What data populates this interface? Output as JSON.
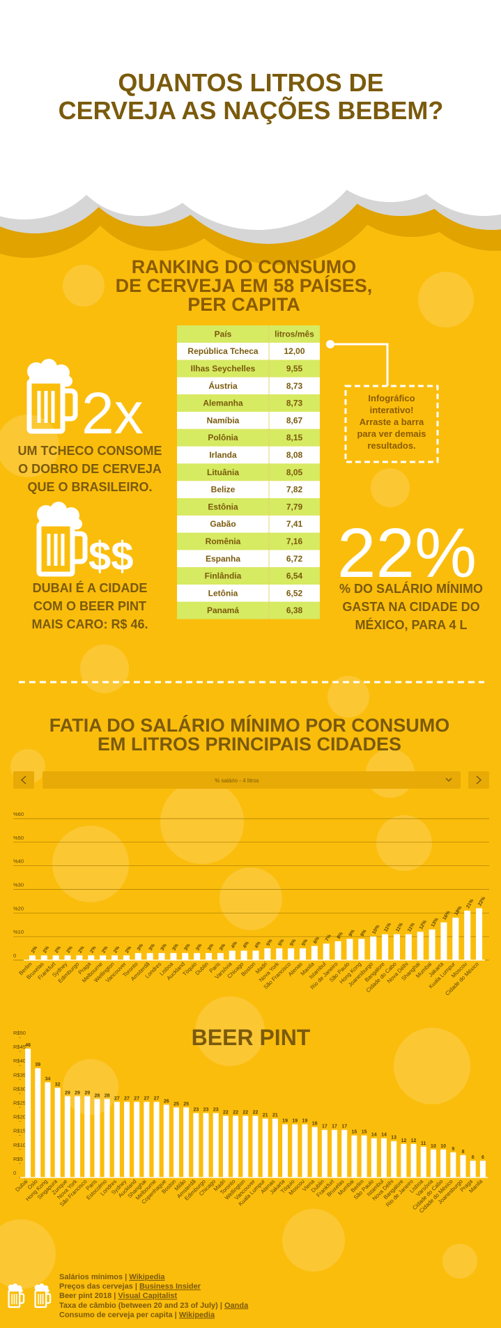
{
  "header": {
    "title": [
      "QUANTOS LITROS DE",
      "CERVEJA AS NAÇÕES BEBEM?"
    ]
  },
  "ranking": {
    "title": [
      "RANKING DO CONSUMO",
      "DE CERVEJA EM 58 PAÍSES,",
      "PER CAPITA"
    ],
    "table": {
      "columns": [
        "País",
        "litros/mês"
      ],
      "rows": [
        [
          "República Tcheca",
          "12,00"
        ],
        [
          "Ilhas Seychelles",
          "9,55"
        ],
        [
          "Áustria",
          "8,73"
        ],
        [
          "Alemanha",
          "8,73"
        ],
        [
          "Namíbia",
          "8,67"
        ],
        [
          "Polônia",
          "8,15"
        ],
        [
          "Irlanda",
          "8,08"
        ],
        [
          "Lituânia",
          "8,05"
        ],
        [
          "Belize",
          "7,82"
        ],
        [
          "Estônia",
          "7,79"
        ],
        [
          "Gabão",
          "7,41"
        ],
        [
          "Romênia",
          "7,16"
        ],
        [
          "Espanha",
          "6,72"
        ],
        [
          "Finlândia",
          "6,54"
        ],
        [
          "Letônia",
          "6,52"
        ],
        [
          "Panamá",
          "6,38"
        ]
      ]
    },
    "callout": [
      "Infográfico",
      "interativo!",
      "Arraste a barra",
      "para ver demais",
      "resultados."
    ]
  },
  "stats": [
    {
      "big": "2x",
      "text": [
        "UM TCHECO CONSOME",
        "O DOBRO DE CERVEJA",
        "QUE O BRASILEIRO."
      ]
    },
    {
      "big": "$$",
      "text": [
        "DUBAI É A CIDADE",
        "COM O BEER PINT",
        "MAIS CARO: R$ 46."
      ]
    },
    {
      "big": "22%",
      "text": [
        "% DO SALÁRIO MÍNIMO",
        "GASTA NA CIDADE DO",
        "MÉXICO, PARA 4 L"
      ]
    }
  ],
  "chart_data": [
    {
      "type": "bar",
      "title": [
        "FATIA DO SALÁRIO MÍNIMO POR CONSUMO",
        "EM LITROS PRINCIPAIS CIDADES"
      ],
      "selector": "% salário - 4 litros",
      "categories": [
        "Berlim",
        "Bruxelas",
        "Frankfurt",
        "Sydney",
        "Edimburgo",
        "Praga",
        "Melbourne",
        "Wellington",
        "Vancouver",
        "Toronto",
        "Amsterdã",
        "Londres",
        "Lisboa",
        "Auckland",
        "Tóquio",
        "Dublin",
        "Paris",
        "Varsóvia",
        "Chicago",
        "Boston",
        "Madri",
        "Nova York",
        "São Francisco",
        "Atenas",
        "Manila",
        "Istambul",
        "Rio de Janeiro",
        "São Paulo",
        "Hong Kong",
        "Joanesburgo",
        "Bangalore",
        "Cidade do Cabo",
        "Nova Délhi",
        "Shanghai",
        "Mumbai",
        "Jakarta",
        "Kuala Lumpur",
        "Moscou",
        "Cidade do México"
      ],
      "values": [
        2,
        2,
        2,
        2,
        2,
        2,
        2,
        2,
        2,
        3,
        3,
        3,
        3,
        3,
        3,
        3,
        3,
        4,
        4,
        4,
        5,
        5,
        5,
        5,
        6,
        7,
        8,
        9,
        9,
        10,
        11,
        11,
        11,
        12,
        13,
        16,
        18,
        21,
        22
      ],
      "value_labels": [
        "2%",
        "2%",
        "2%",
        "2%",
        "2%",
        "2%",
        "2%",
        "2%",
        "2%",
        "3%",
        "3%",
        "3%",
        "3%",
        "3%",
        "3%",
        "3%",
        "3%",
        "4%",
        "4%",
        "4%",
        "5%",
        "5%",
        "5%",
        "5%",
        "6%",
        "7%",
        "8%",
        "9%",
        "9%",
        "10%",
        "11%",
        "11%",
        "11%",
        "12%",
        "13%",
        "16%",
        "18%",
        "21%",
        "22%"
      ],
      "color": "#ffffff",
      "ylim": [
        0,
        60
      ],
      "yticks": [
        0,
        {
          "value": 10,
          "label": "%10"
        },
        {
          "value": 20,
          "label": "%20"
        },
        {
          "value": 30,
          "label": "%30"
        },
        {
          "value": 40,
          "label": "%40"
        },
        {
          "value": 50,
          "label": "%50"
        },
        {
          "value": 60,
          "label": "%60"
        }
      ],
      "grid": true
    },
    {
      "type": "bar",
      "title": "BEER PINT",
      "categories": [
        "Dubai",
        "Oslo",
        "Hong Kong",
        "Singapura",
        "Zurique",
        "Nova York",
        "São Francisco",
        "Paris",
        "Estocolmo",
        "Londres",
        "Sydney",
        "Auckland",
        "Shanghai",
        "Melbourne",
        "Copenhague",
        "Boston",
        "Milão",
        "Amsterdã",
        "Edimburgo",
        "Chicago",
        "Madri",
        "Toronto",
        "Wellington",
        "Vancouver",
        "Kuala Lumpur",
        "Atenas",
        "Jakarta",
        "Tóquio",
        "Moscou",
        "Viena",
        "Dublin",
        "Frankfurt",
        "Bruxelas",
        "Mumbai",
        "Berlim",
        "São Paulo",
        "Istambul",
        "Nova Délhi",
        "Bangalore",
        "Rio de Janeiro",
        "Lisboa",
        "Varsóvia",
        "Cidade do Cabo",
        "Cidade do México",
        "Joanesburgo",
        "Praga",
        "Manila"
      ],
      "values": [
        46,
        39,
        34,
        32,
        29,
        29,
        29,
        28,
        28,
        27,
        27,
        27,
        27,
        27,
        26,
        25,
        25,
        23,
        23,
        23,
        22,
        22,
        22,
        22,
        21,
        21,
        19,
        19,
        19,
        18,
        17,
        17,
        17,
        15,
        15,
        14,
        14,
        13,
        12,
        12,
        11,
        10,
        10,
        9,
        8,
        6,
        6
      ],
      "color": "#ffffff",
      "ylim": [
        0,
        50
      ],
      "yticks": [
        0,
        {
          "value": 5,
          "label": "R$5"
        },
        {
          "value": 10,
          "label": "R$10"
        },
        {
          "value": 15,
          "label": "R$15"
        },
        {
          "value": 20,
          "label": "R$20"
        },
        {
          "value": 25,
          "label": "R$25"
        },
        {
          "value": 30,
          "label": "R$30"
        },
        {
          "value": 35,
          "label": "R$35"
        },
        {
          "value": 40,
          "label": "R$40"
        },
        {
          "value": 45,
          "label": "R$45"
        },
        {
          "value": 50,
          "label": "R$50"
        }
      ],
      "grid": false
    }
  ],
  "sources": [
    {
      "label": "Salários mínimos | ",
      "link": "Wikipedia"
    },
    {
      "label": "Preços das cervejas  | ",
      "link": "Business Insider"
    },
    {
      "label": "Beer pint 2018 | ",
      "link": "Visual Capitalist"
    },
    {
      "label": "Taxa de câmbio (between 20 and 23 of July) | ",
      "link": "Oanda"
    },
    {
      "label": "Consumo de cerveja per capita | ",
      "link": "Wikipedia"
    }
  ]
}
